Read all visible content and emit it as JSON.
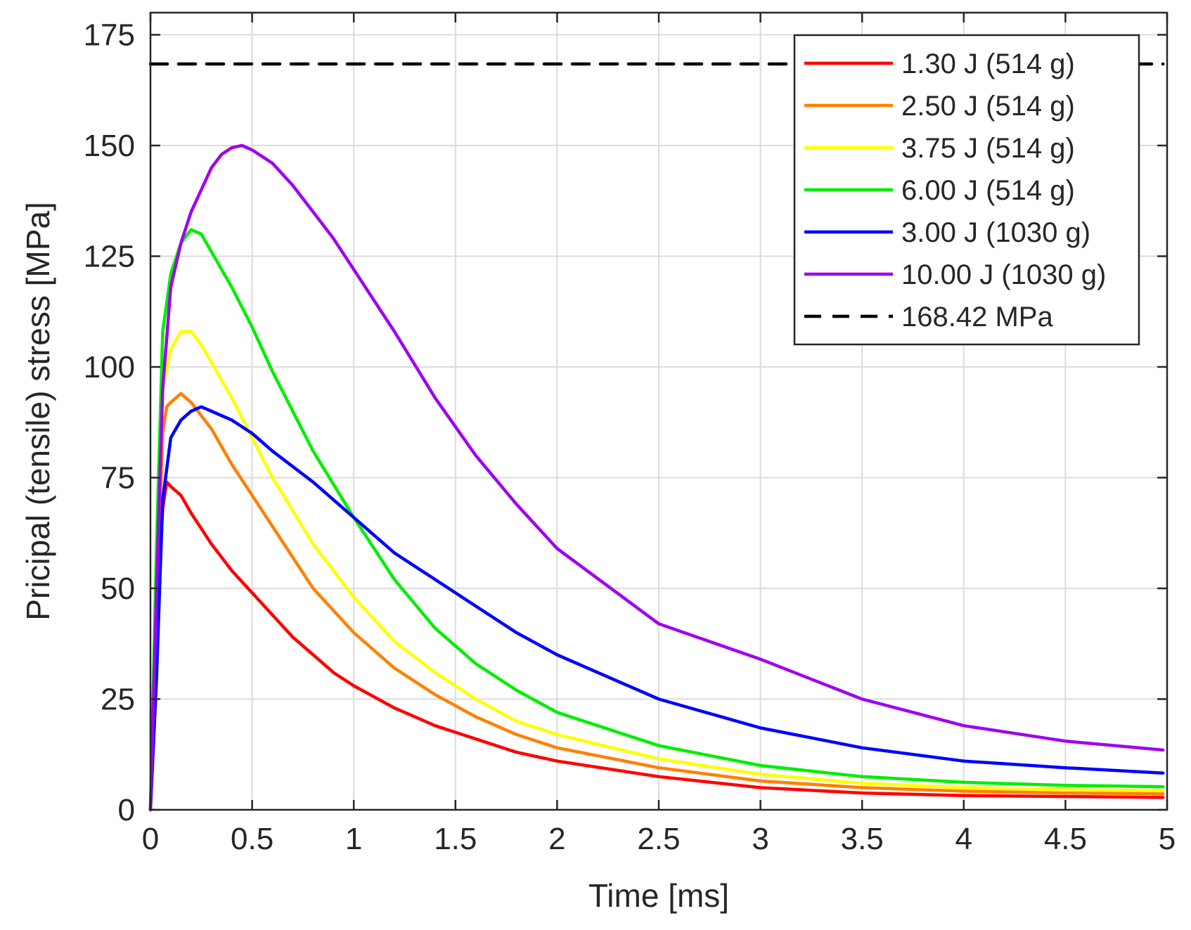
{
  "chart_data": {
    "type": "line",
    "title": "",
    "xlabel": "Time [ms]",
    "ylabel": "Pricipal (tensile) stress [MPa]",
    "xlim": [
      0,
      5
    ],
    "ylim": [
      0,
      180
    ],
    "xticks": [
      0,
      0.5,
      1,
      1.5,
      2,
      2.5,
      3,
      3.5,
      4,
      4.5,
      5
    ],
    "yticks": [
      0,
      25,
      50,
      75,
      100,
      125,
      150,
      175
    ],
    "xtick_labels": [
      "0",
      "0.5",
      "1",
      "1.5",
      "2",
      "2.5",
      "3",
      "3.5",
      "4",
      "4.5",
      "5"
    ],
    "ytick_labels": [
      "0",
      "25",
      "50",
      "75",
      "100",
      "125",
      "150",
      "175"
    ],
    "grid": true,
    "legend_position": "top-right",
    "series": [
      {
        "name": "1.30 J (514 g)",
        "color": "#ff0000",
        "style": "solid",
        "x": [
          0,
          0.03,
          0.06,
          0.08,
          0.1,
          0.15,
          0.2,
          0.3,
          0.4,
          0.5,
          0.6,
          0.7,
          0.8,
          0.9,
          1.0,
          1.2,
          1.4,
          1.6,
          1.8,
          2.0,
          2.5,
          3.0,
          3.5,
          4.0,
          4.5,
          4.98
        ],
        "y": [
          0,
          40,
          68,
          74,
          73,
          71,
          67,
          60,
          54,
          49,
          44,
          39,
          35,
          31,
          28,
          23,
          19,
          16,
          13,
          11,
          7.5,
          5,
          3.8,
          3.2,
          3,
          2.8
        ]
      },
      {
        "name": "2.50 J (514 g)",
        "color": "#ff8000",
        "style": "solid",
        "x": [
          0,
          0.03,
          0.06,
          0.08,
          0.1,
          0.15,
          0.2,
          0.3,
          0.4,
          0.5,
          0.6,
          0.7,
          0.8,
          1.0,
          1.2,
          1.4,
          1.6,
          1.8,
          2.0,
          2.5,
          3.0,
          3.5,
          4.0,
          4.5,
          4.98
        ],
        "y": [
          0,
          45,
          85,
          91,
          92,
          94,
          92,
          86,
          78,
          71,
          64,
          57,
          50,
          40,
          32,
          26,
          21,
          17,
          14,
          9.5,
          6.5,
          5,
          4.2,
          3.8,
          3.6
        ]
      },
      {
        "name": "3.75 J (514 g)",
        "color": "#ffff00",
        "style": "solid",
        "x": [
          0,
          0.03,
          0.06,
          0.1,
          0.15,
          0.2,
          0.25,
          0.3,
          0.4,
          0.5,
          0.6,
          0.8,
          1.0,
          1.2,
          1.4,
          1.6,
          1.8,
          2.0,
          2.5,
          3.0,
          3.5,
          4.0,
          4.5,
          4.98
        ],
        "y": [
          0,
          50,
          95,
          104,
          108,
          108,
          105,
          101,
          93,
          84,
          75,
          60,
          48,
          38,
          31,
          25,
          20,
          17,
          11.5,
          8,
          6,
          5,
          4.5,
          4.3
        ]
      },
      {
        "name": "6.00 J (514 g)",
        "color": "#00ee00",
        "style": "solid",
        "x": [
          0,
          0.03,
          0.06,
          0.1,
          0.15,
          0.2,
          0.25,
          0.3,
          0.4,
          0.5,
          0.6,
          0.7,
          0.8,
          1.0,
          1.2,
          1.4,
          1.6,
          1.8,
          2.0,
          2.5,
          3.0,
          3.5,
          4.0,
          4.5,
          4.98
        ],
        "y": [
          0,
          60,
          108,
          121,
          128,
          131,
          130,
          126,
          118,
          109,
          99,
          90,
          81,
          66,
          52,
          41,
          33,
          27,
          22,
          14.5,
          10,
          7.5,
          6.2,
          5.5,
          5.2
        ]
      },
      {
        "name": "3.00 J (1030 g)",
        "color": "#0000ff",
        "style": "solid",
        "x": [
          0,
          0.03,
          0.06,
          0.1,
          0.15,
          0.2,
          0.25,
          0.3,
          0.4,
          0.5,
          0.6,
          0.8,
          1.0,
          1.2,
          1.4,
          1.6,
          1.8,
          2.0,
          2.5,
          3.0,
          3.5,
          4.0,
          4.5,
          4.98
        ],
        "y": [
          0,
          30,
          70,
          84,
          88,
          90,
          91,
          90,
          88,
          85,
          81,
          74,
          66,
          58,
          52,
          46,
          40,
          35,
          25,
          18.5,
          14,
          11,
          9.5,
          8.3
        ]
      },
      {
        "name": "10.00 J (1030 g)",
        "color": "#a000f0",
        "style": "solid",
        "x": [
          0,
          0.03,
          0.06,
          0.1,
          0.15,
          0.2,
          0.25,
          0.3,
          0.35,
          0.4,
          0.45,
          0.5,
          0.6,
          0.7,
          0.8,
          0.9,
          1.0,
          1.2,
          1.4,
          1.6,
          1.8,
          2.0,
          2.5,
          3.0,
          3.5,
          4.0,
          4.5,
          4.98
        ],
        "y": [
          0,
          50,
          95,
          118,
          128,
          135,
          140,
          145,
          148,
          149.5,
          150,
          149,
          146,
          141,
          135,
          129,
          122,
          108,
          93,
          80,
          69,
          59,
          42,
          34,
          25,
          19,
          15.5,
          13.5
        ]
      },
      {
        "name": "168.42 MPa",
        "color": "#000000",
        "style": "dashed",
        "x": [
          0,
          4.98
        ],
        "y": [
          168.42,
          168.42
        ]
      }
    ]
  }
}
